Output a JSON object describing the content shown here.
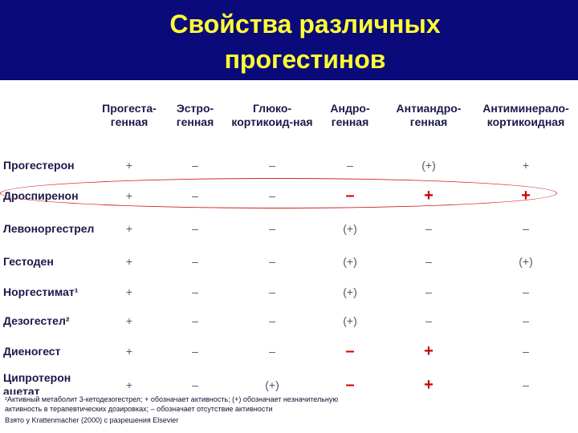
{
  "title_line1": "Свойства различных",
  "title_line2": "прогестинов",
  "columns": [
    "Прогеста-генная",
    "Эстро-генная",
    "Глюко-кортикоид-ная",
    "Андро-генная",
    "Антиандро-генная",
    "Антиминерало-кортикоидная"
  ],
  "rows": [
    {
      "name": "Прогестерон",
      "cells": [
        "+",
        "–",
        "–",
        "–",
        "(+)",
        "+"
      ]
    },
    {
      "name": "Дроспиренон",
      "cells": [
        "+",
        "–",
        "–",
        "–",
        "+",
        "+"
      ]
    },
    {
      "name": "Левоноргестрел",
      "cells": [
        "+",
        "–",
        "–",
        "(+)",
        "–",
        "–"
      ]
    },
    {
      "name": "Гестоден",
      "cells": [
        "+",
        "–",
        "–",
        "(+)",
        "–",
        "(+)"
      ]
    },
    {
      "name": "Норгестимат¹",
      "cells": [
        "+",
        "–",
        "–",
        "(+)",
        "–",
        "–"
      ]
    },
    {
      "name": "Дезогестел²",
      "cells": [
        "+",
        "–",
        "–",
        "(+)",
        "–",
        "–"
      ]
    },
    {
      "name": "Диеногест",
      "cells": [
        "+",
        "–",
        "–",
        "–",
        "+",
        "–"
      ]
    },
    {
      "name": "Ципротерон ацетат",
      "cells": [
        "+",
        "–",
        "(+)",
        "–",
        "+",
        "–"
      ]
    }
  ],
  "footnotes": [
    "²Активный метаболит 3-кетодезогестрел; + обозначает активность; (+) обозначает незначительную",
    "активность в терапевтических дозировках; – обозначает отсутствие активности",
    "Взято у Krattenmacher (2000) с разрешения Elsevier"
  ],
  "emphasis_color": "#cc0000",
  "highlight_color": "#d42020"
}
